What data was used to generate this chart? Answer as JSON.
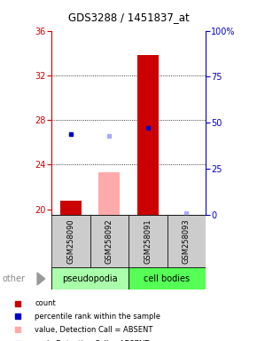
{
  "title": "GDS3288 / 1451837_at",
  "samples": [
    "GSM258090",
    "GSM258092",
    "GSM258091",
    "GSM258093"
  ],
  "groups": [
    "pseudopodia",
    "pseudopodia",
    "cell bodies",
    "cell bodies"
  ],
  "group_colors": {
    "pseudopodia": "#aaffaa",
    "cell bodies": "#55ff55"
  },
  "ylim_left": [
    19.5,
    36
  ],
  "ylim_right": [
    0,
    100
  ],
  "yticks_left": [
    20,
    24,
    28,
    32,
    36
  ],
  "yticks_right": [
    0,
    25,
    50,
    75,
    100
  ],
  "yticklabels_right": [
    "0",
    "25",
    "50",
    "75",
    "100%"
  ],
  "bar_width": 0.55,
  "red_bars": {
    "GSM258090": 20.8,
    "GSM258092": null,
    "GSM258091": 33.8,
    "GSM258093": null
  },
  "pink_bars": {
    "GSM258090": null,
    "GSM258092": 23.3,
    "GSM258091": null,
    "GSM258093": null
  },
  "blue_dots_pct": {
    "GSM258090": 44.0,
    "GSM258092": null,
    "GSM258091": 47.0,
    "GSM258093": null
  },
  "lightblue_dots_pct": {
    "GSM258090": null,
    "GSM258092": 43.0,
    "GSM258091": null,
    "GSM258093": 1.0
  },
  "left_axis_color": "#cc0000",
  "right_axis_color": "#0000cc",
  "sample_bg": "#cccccc",
  "legend_items": [
    {
      "label": "count",
      "color": "#cc0000"
    },
    {
      "label": "percentile rank within the sample",
      "color": "#0000cc"
    },
    {
      "label": "value, Detection Call = ABSENT",
      "color": "#ffaaaa"
    },
    {
      "label": "rank, Detection Call = ABSENT",
      "color": "#aaaaff"
    }
  ]
}
